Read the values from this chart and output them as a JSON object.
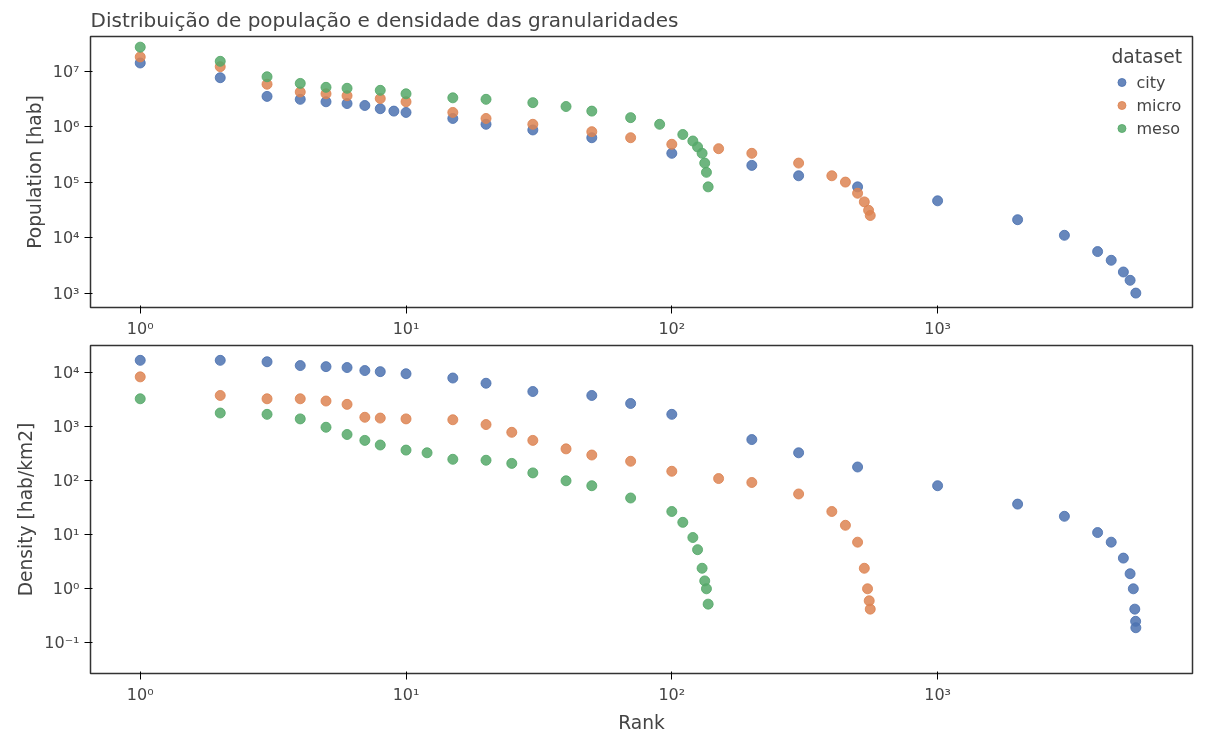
{
  "chart_data": [
    {
      "type": "scatter",
      "title": "Distribuição de população e densidade das granularidades",
      "ylabel": "Population [hab]",
      "log": "xy",
      "grid": false,
      "legend": "top right",
      "legend_title": "dataset",
      "marker": "circle",
      "xlim": [
        0.65,
        9100
      ],
      "ylim": [
        550,
        42000000
      ],
      "xticks": [
        {
          "value": 1,
          "label": "10⁰"
        },
        {
          "value": 10,
          "label": "10¹"
        },
        {
          "value": 100,
          "label": "10²"
        },
        {
          "value": 1000,
          "label": "10³"
        }
      ],
      "yticks": [
        {
          "value": 1000,
          "label": "10³"
        },
        {
          "value": 10000,
          "label": "10⁴"
        },
        {
          "value": 100000,
          "label": "10⁵"
        },
        {
          "value": 1000000,
          "label": "10⁶"
        },
        {
          "value": 10000000,
          "label": "10⁷"
        }
      ],
      "series": [
        {
          "name": "city",
          "color": "#4c72b0",
          "x": [
            1,
            2,
            3,
            4,
            5,
            6,
            7,
            8,
            9,
            10,
            15,
            20,
            30,
            50,
            100,
            200,
            300,
            500,
            1000,
            2000,
            3000,
            4000,
            4500,
            5000,
            5300,
            5570
          ],
          "values": [
            14000000,
            7600000,
            3500000,
            3100000,
            2800000,
            2600000,
            2400000,
            2100000,
            1900000,
            1800000,
            1400000,
            1100000,
            870000,
            630000,
            330000,
            200000,
            130000,
            82000,
            46000,
            21000,
            11000,
            5600,
            3900,
            2400,
            1700,
            1000
          ]
        },
        {
          "name": "micro",
          "color": "#dd8452",
          "x": [
            1,
            2,
            3,
            4,
            5,
            6,
            8,
            10,
            15,
            20,
            30,
            50,
            70,
            100,
            150,
            200,
            300,
            400,
            450,
            500,
            530,
            550,
            558
          ],
          "values": [
            18000000,
            12000000,
            5800000,
            4200000,
            3900000,
            3600000,
            3200000,
            2800000,
            1800000,
            1400000,
            1100000,
            810000,
            630000,
            480000,
            400000,
            330000,
            220000,
            130000,
            100000,
            63000,
            44000,
            31000,
            25000
          ]
        },
        {
          "name": "meso",
          "color": "#55a868",
          "x": [
            1,
            2,
            3,
            4,
            5,
            6,
            8,
            10,
            15,
            20,
            30,
            40,
            50,
            70,
            90,
            110,
            120,
            125,
            130,
            133,
            135,
            137
          ],
          "values": [
            27000000,
            15000000,
            7900000,
            6000000,
            5100000,
            4900000,
            4500000,
            3900000,
            3300000,
            3100000,
            2700000,
            2300000,
            1900000,
            1450000,
            1100000,
            720000,
            550000,
            430000,
            330000,
            220000,
            150000,
            82000
          ]
        }
      ]
    },
    {
      "type": "scatter",
      "xlabel": "Rank",
      "ylabel": "Density [hab/km2]",
      "log": "xy",
      "grid": false,
      "marker": "circle",
      "xlim": [
        0.65,
        9100
      ],
      "ylim": [
        0.027,
        32000
      ],
      "xticks": [
        {
          "value": 1,
          "label": "10⁰"
        },
        {
          "value": 10,
          "label": "10¹"
        },
        {
          "value": 100,
          "label": "10²"
        },
        {
          "value": 1000,
          "label": "10³"
        }
      ],
      "yticks": [
        {
          "value": 0.1,
          "label": "10⁻¹"
        },
        {
          "value": 1,
          "label": "10⁰"
        },
        {
          "value": 10,
          "label": "10¹"
        },
        {
          "value": 100,
          "label": "10²"
        },
        {
          "value": 1000,
          "label": "10³"
        },
        {
          "value": 10000,
          "label": "10⁴"
        }
      ],
      "series": [
        {
          "color": "#4c72b0",
          "x": [
            1,
            2,
            3,
            4,
            5,
            6,
            7,
            8,
            10,
            15,
            20,
            30,
            50,
            70,
            100,
            200,
            300,
            500,
            1000,
            2000,
            3000,
            4000,
            4500,
            5000,
            5300,
            5450,
            5520,
            5560,
            5570
          ],
          "values": [
            17000,
            17000,
            16000,
            13600,
            13000,
            12500,
            11000,
            10500,
            9600,
            8000,
            6400,
            4500,
            3800,
            2700,
            1700,
            580,
            330,
            180,
            81,
            37,
            22,
            11,
            7.3,
            3.7,
            1.9,
            1.0,
            0.42,
            0.25,
            0.19
          ]
        },
        {
          "color": "#dd8452",
          "x": [
            1,
            2,
            3,
            4,
            5,
            6,
            7,
            8,
            10,
            15,
            20,
            25,
            30,
            40,
            50,
            70,
            100,
            150,
            200,
            300,
            400,
            450,
            500,
            530,
            545,
            553,
            558
          ],
          "values": [
            8400,
            3800,
            3300,
            3300,
            3000,
            2600,
            1500,
            1450,
            1400,
            1350,
            1100,
            790,
            560,
            390,
            300,
            230,
            150,
            110,
            93,
            57,
            27,
            15,
            7.3,
            2.4,
            1.0,
            0.6,
            0.42
          ]
        },
        {
          "color": "#55a868",
          "x": [
            1,
            2,
            3,
            4,
            5,
            6,
            7,
            8,
            10,
            12,
            15,
            20,
            25,
            30,
            40,
            50,
            70,
            100,
            110,
            120,
            125,
            130,
            133,
            135,
            137
          ],
          "values": [
            3300,
            1800,
            1700,
            1400,
            980,
            720,
            560,
            460,
            370,
            330,
            250,
            240,
            210,
            140,
            100,
            81,
            48,
            27,
            17,
            8.9,
            5.3,
            2.4,
            1.4,
            1.0,
            0.52
          ]
        }
      ]
    }
  ]
}
